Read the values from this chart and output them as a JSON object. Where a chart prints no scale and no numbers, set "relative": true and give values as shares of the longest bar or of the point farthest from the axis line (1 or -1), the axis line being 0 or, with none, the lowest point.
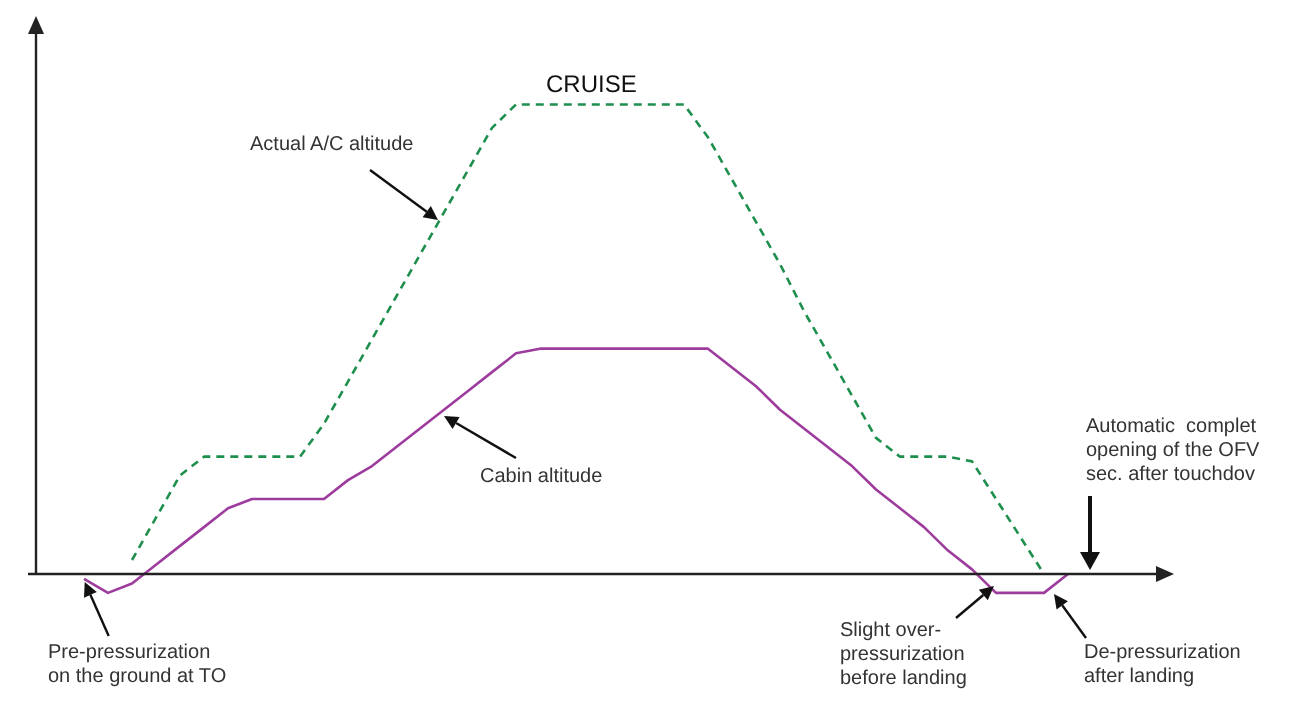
{
  "chart_data": {
    "type": "line",
    "relative": true,
    "legend": false,
    "tick_labels": false,
    "marker": "none",
    "categories": [
      null,
      null,
      null,
      null,
      null,
      null,
      null,
      null,
      null,
      null,
      null,
      null,
      null,
      null,
      null,
      null,
      null,
      null,
      null,
      null,
      null,
      null,
      null,
      null,
      null,
      null,
      null,
      null,
      null,
      null,
      null,
      null,
      null,
      null,
      null,
      null,
      null,
      null,
      null,
      null,
      null,
      null,
      null,
      null,
      null,
      null,
      null
    ],
    "series": [
      {
        "color": "#1f8f4e",
        "line_style": "dashed",
        "values": [
          null,
          null,
          null,
          null,
          0.03,
          0.12,
          0.21,
          0.25,
          0.25,
          0.25,
          0.25,
          0.25,
          0.32,
          0.41,
          0.5,
          0.59,
          0.68,
          0.77,
          0.86,
          0.95,
          1,
          1,
          1,
          1,
          1,
          1,
          1,
          1,
          0.93,
          0.84,
          0.75,
          0.66,
          0.56,
          0.47,
          0.38,
          0.29,
          0.25,
          0.25,
          0.25,
          0.24,
          0.16,
          0.08,
          0,
          null,
          null,
          null,
          null
        ]
      },
      {
        "color": "#9e3c9e",
        "line_style": "solid",
        "values": [
          null,
          null,
          -0.01,
          -0.04,
          -0.02,
          0.02,
          0.06,
          0.1,
          0.14,
          0.16,
          0.16,
          0.16,
          0.16,
          0.2,
          0.23,
          0.27,
          0.31,
          0.35,
          0.39,
          0.43,
          0.47,
          0.48,
          0.48,
          0.48,
          0.48,
          0.48,
          0.48,
          0.48,
          0.48,
          0.44,
          0.4,
          0.35,
          0.31,
          0.27,
          0.23,
          0.18,
          0.14,
          0.1,
          0.05,
          0.01,
          -0.04,
          -0.04,
          -0.04,
          0,
          null,
          null,
          null
        ]
      }
    ],
    "annotations": [
      "CRUISE",
      "Actual A/C altitude",
      "Cabin altitude",
      "Pre-pressurization\non the ground at TO",
      "Slight over-\npressurization\nbefore landing",
      "De-pressurization\nafter landing",
      "Automatic  complet\nopening of the OFV\nsec. after touchdov"
    ]
  }
}
